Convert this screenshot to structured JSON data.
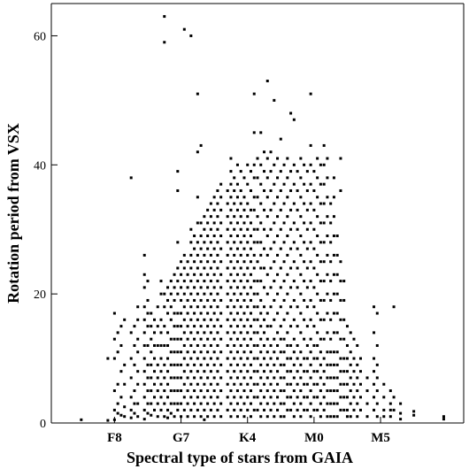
{
  "chart_data": {
    "type": "scatter",
    "title": "",
    "xlabel": "Spectral type of stars from GAIA",
    "ylabel": "Rotation period from VSX",
    "x_tick_labels": [
      "F8",
      "G7",
      "K4",
      "M0",
      "M5"
    ],
    "x_tick_positions": [
      1,
      2,
      3,
      4,
      5
    ],
    "xlim": [
      0.05,
      6.25
    ],
    "y_ticks": [
      0,
      20,
      40,
      60
    ],
    "ylim": [
      0,
      65
    ],
    "grid": false,
    "legend": "none",
    "marker_color": "#000000",
    "columns": [
      {
        "x": 0.5,
        "y": [
          0.5
        ]
      },
      {
        "x": 0.9,
        "y": [
          10,
          0.4
        ]
      },
      {
        "x": 1.0,
        "y": [
          17,
          13,
          10,
          5,
          2,
          0.5
        ]
      },
      {
        "x": 1.05,
        "y": [
          14,
          11,
          6,
          3,
          1.5
        ]
      },
      {
        "x": 1.1,
        "y": [
          15,
          12,
          8,
          4,
          1.2
        ]
      },
      {
        "x": 1.15,
        "y": [
          16,
          9,
          6,
          2.5,
          1
        ]
      },
      {
        "x": 1.25,
        "y": [
          38,
          14,
          10,
          7,
          4,
          2,
          0.8
        ]
      },
      {
        "x": 1.3,
        "y": [
          15,
          12,
          9,
          5,
          3,
          1.5
        ]
      },
      {
        "x": 1.35,
        "y": [
          18,
          16,
          13,
          11,
          8,
          6,
          3,
          1
        ]
      },
      {
        "x": 1.45,
        "y": [
          26,
          23,
          21,
          18,
          16,
          14,
          12,
          10,
          8,
          6,
          4,
          2,
          0.6
        ]
      },
      {
        "x": 1.5,
        "y": [
          22,
          19,
          17,
          15,
          12,
          9,
          7,
          5,
          3,
          1.5
        ]
      },
      {
        "x": 1.55,
        "y": [
          17,
          15,
          13,
          11,
          9,
          7,
          5,
          3,
          1.2
        ]
      },
      {
        "x": 1.6,
        "y": [
          16,
          14,
          12,
          10,
          8,
          6,
          4,
          2
        ]
      },
      {
        "x": 1.65,
        "y": [
          18,
          15,
          12,
          9,
          7,
          5,
          3,
          1
        ]
      },
      {
        "x": 1.7,
        "y": [
          22,
          20,
          16,
          14,
          12,
          10,
          8,
          6,
          4,
          2
        ]
      },
      {
        "x": 1.75,
        "y": [
          63,
          59,
          20,
          18,
          15,
          12,
          9,
          7,
          5,
          3,
          1
        ]
      },
      {
        "x": 1.8,
        "y": [
          21,
          19,
          17,
          14,
          12,
          10,
          8,
          6,
          4,
          2,
          0.8
        ]
      },
      {
        "x": 1.85,
        "y": [
          22,
          20,
          18,
          16,
          13,
          11,
          9,
          7,
          5,
          3,
          1.5
        ]
      },
      {
        "x": 1.9,
        "y": [
          23,
          21,
          19,
          17,
          15,
          13,
          11,
          9,
          7,
          5,
          3,
          1
        ]
      },
      {
        "x": 1.95,
        "y": [
          39,
          36,
          28,
          24,
          22,
          20,
          17,
          15,
          13,
          11,
          9,
          7,
          5,
          3,
          2
        ]
      },
      {
        "x": 2.0,
        "y": [
          25,
          23,
          21,
          19,
          17,
          15,
          13,
          11,
          9,
          7,
          5,
          3,
          1
        ]
      },
      {
        "x": 2.05,
        "y": [
          61,
          26,
          24,
          22,
          20,
          18,
          16,
          14,
          12,
          10,
          8,
          6,
          4,
          2
        ]
      },
      {
        "x": 2.1,
        "y": [
          25,
          23,
          21,
          19,
          17,
          15,
          13,
          11,
          9,
          7,
          5,
          3,
          1
        ]
      },
      {
        "x": 2.15,
        "y": [
          60,
          30,
          28,
          26,
          24,
          22,
          20,
          18,
          16,
          14,
          12,
          10,
          8,
          6,
          4,
          2
        ]
      },
      {
        "x": 2.2,
        "y": [
          29,
          27,
          25,
          23,
          21,
          19,
          17,
          15,
          13,
          11,
          9,
          7,
          5,
          3,
          1
        ]
      },
      {
        "x": 2.25,
        "y": [
          51,
          42,
          35,
          31,
          28,
          26,
          24,
          22,
          20,
          18,
          16,
          14,
          12,
          10,
          8,
          6,
          4,
          2
        ]
      },
      {
        "x": 2.3,
        "y": [
          43,
          31,
          29,
          27,
          25,
          23,
          21,
          19,
          17,
          15,
          13,
          11,
          9,
          7,
          5,
          3,
          1
        ]
      },
      {
        "x": 2.35,
        "y": [
          32,
          30,
          28,
          26,
          24,
          22,
          20,
          18,
          16,
          14,
          12,
          10,
          8,
          6,
          4,
          2,
          0.5
        ]
      },
      {
        "x": 2.4,
        "y": [
          33,
          31,
          29,
          27,
          25,
          23,
          21,
          19,
          17,
          15,
          13,
          11,
          9,
          7,
          5,
          3,
          1
        ]
      },
      {
        "x": 2.45,
        "y": [
          34,
          32,
          30,
          28,
          26,
          24,
          22,
          20,
          18,
          16,
          14,
          12,
          10,
          8,
          6,
          4,
          2
        ]
      },
      {
        "x": 2.5,
        "y": [
          35,
          33,
          31,
          29,
          27,
          25,
          23,
          21,
          19,
          17,
          15,
          13,
          11,
          9,
          7,
          5,
          3,
          1
        ]
      },
      {
        "x": 2.55,
        "y": [
          36,
          34,
          32,
          30,
          28,
          26,
          24,
          22,
          20,
          18,
          16,
          14,
          12,
          10,
          8,
          6,
          4,
          2
        ]
      },
      {
        "x": 2.6,
        "y": [
          37,
          35,
          33,
          31,
          29,
          27,
          25,
          23,
          21,
          19,
          17,
          15,
          13,
          11,
          9,
          7,
          5,
          3,
          1
        ]
      },
      {
        "x": 2.7,
        "y": [
          36,
          34,
          32,
          30,
          28,
          26,
          24,
          22,
          20,
          18,
          16,
          14,
          12,
          10,
          8,
          6,
          4,
          2
        ]
      },
      {
        "x": 2.75,
        "y": [
          41,
          39,
          37,
          35,
          33,
          31,
          29,
          27,
          25,
          23,
          21,
          19,
          17,
          15,
          13,
          11,
          9,
          7,
          5,
          3,
          1
        ]
      },
      {
        "x": 2.8,
        "y": [
          38,
          36,
          34,
          32,
          30,
          28,
          26,
          24,
          22,
          20,
          18,
          16,
          14,
          12,
          10,
          8,
          6,
          4,
          2
        ]
      },
      {
        "x": 2.85,
        "y": [
          40,
          37,
          35,
          33,
          31,
          29,
          27,
          25,
          23,
          21,
          19,
          17,
          15,
          13,
          11,
          9,
          7,
          5,
          3,
          1
        ]
      },
      {
        "x": 2.9,
        "y": [
          39,
          36,
          34,
          32,
          30,
          28,
          26,
          24,
          22,
          20,
          18,
          16,
          14,
          12,
          10,
          8,
          6,
          4,
          2
        ]
      },
      {
        "x": 2.95,
        "y": [
          38,
          35,
          33,
          31,
          29,
          27,
          25,
          23,
          21,
          19,
          17,
          15,
          13,
          11,
          9,
          7,
          5,
          3,
          1
        ]
      },
      {
        "x": 3.0,
        "y": [
          40,
          37,
          34,
          32,
          30,
          28,
          26,
          24,
          22,
          20,
          18,
          16,
          14,
          12,
          10,
          8,
          6,
          4,
          2
        ]
      },
      {
        "x": 3.05,
        "y": [
          39,
          36,
          33,
          31,
          29,
          27,
          25,
          23,
          21,
          19,
          17,
          15,
          13,
          11,
          9,
          7,
          5,
          3,
          1
        ]
      },
      {
        "x": 3.1,
        "y": [
          51,
          45,
          40,
          38,
          35,
          33,
          30,
          28,
          26,
          24,
          22,
          20,
          18,
          16,
          14,
          12,
          10,
          8,
          6,
          4,
          2
        ]
      },
      {
        "x": 3.15,
        "y": [
          41,
          38,
          35,
          32,
          30,
          28,
          25,
          22,
          20,
          18,
          16,
          14,
          12,
          10,
          8,
          6,
          4,
          2
        ]
      },
      {
        "x": 3.2,
        "y": [
          45,
          40,
          37,
          34,
          31,
          28,
          26,
          24,
          22,
          19,
          17,
          15,
          13,
          11,
          9,
          7,
          5,
          3,
          1
        ]
      },
      {
        "x": 3.25,
        "y": [
          42,
          39,
          36,
          33,
          30,
          27,
          24,
          21,
          18,
          16,
          14,
          12,
          10,
          8,
          6,
          4,
          2
        ]
      },
      {
        "x": 3.3,
        "y": [
          53,
          41,
          38,
          35,
          32,
          29,
          26,
          23,
          20,
          17,
          15,
          13,
          11,
          9,
          7,
          5,
          3,
          1
        ]
      },
      {
        "x": 3.35,
        "y": [
          42,
          39,
          36,
          33,
          30,
          27,
          24,
          21,
          18,
          15,
          12,
          10,
          8,
          6,
          4,
          2
        ]
      },
      {
        "x": 3.4,
        "y": [
          50,
          40,
          37,
          34,
          31,
          28,
          25,
          22,
          19,
          16,
          13,
          11,
          9,
          7,
          5,
          3,
          1
        ]
      },
      {
        "x": 3.45,
        "y": [
          41,
          38,
          35,
          32,
          29,
          26,
          23,
          20,
          17,
          14,
          12,
          10,
          8,
          6,
          4,
          2
        ]
      },
      {
        "x": 3.5,
        "y": [
          44,
          39,
          36,
          33,
          30,
          27,
          24,
          21,
          18,
          15,
          13,
          11,
          9,
          7,
          5,
          3,
          1
        ]
      },
      {
        "x": 3.55,
        "y": [
          40,
          37,
          34,
          31,
          28,
          25,
          22,
          19,
          16,
          13,
          11,
          9,
          7,
          5,
          3,
          1
        ]
      },
      {
        "x": 3.6,
        "y": [
          41,
          38,
          35,
          32,
          29,
          26,
          23,
          20,
          17,
          14,
          12,
          10,
          8,
          6,
          4,
          2
        ]
      },
      {
        "x": 3.65,
        "y": [
          48,
          39,
          36,
          33,
          30,
          27,
          24,
          21,
          18,
          15,
          12,
          10,
          8,
          6,
          4,
          2
        ]
      },
      {
        "x": 3.7,
        "y": [
          47,
          40,
          37,
          34,
          31,
          28,
          25,
          22,
          19,
          16,
          13,
          11,
          9,
          7,
          5,
          3,
          1
        ]
      },
      {
        "x": 3.75,
        "y": [
          39,
          36,
          33,
          30,
          27,
          24,
          21,
          18,
          15,
          12,
          10,
          8,
          6,
          4,
          2
        ]
      },
      {
        "x": 3.8,
        "y": [
          41,
          38,
          35,
          32,
          29,
          26,
          23,
          20,
          17,
          14,
          11,
          9,
          7,
          5,
          3,
          1
        ]
      },
      {
        "x": 3.85,
        "y": [
          40,
          37,
          34,
          31,
          28,
          25,
          22,
          19,
          16,
          13,
          10,
          8,
          6,
          4,
          2
        ]
      },
      {
        "x": 3.9,
        "y": [
          39,
          36,
          33,
          30,
          27,
          24,
          21,
          18,
          15,
          12,
          10,
          8,
          6,
          4,
          2
        ]
      },
      {
        "x": 3.95,
        "y": [
          51,
          43,
          40,
          37,
          34,
          31,
          28,
          25,
          22,
          19,
          16,
          13,
          11,
          9,
          7,
          5,
          3,
          1
        ]
      },
      {
        "x": 4.0,
        "y": [
          39,
          36,
          33,
          30,
          27,
          24,
          21,
          18,
          15,
          12,
          10,
          8,
          6,
          4,
          2
        ]
      },
      {
        "x": 4.05,
        "y": [
          41,
          38,
          35,
          32,
          29,
          26,
          23,
          20,
          17,
          14,
          12,
          10,
          8,
          6,
          4,
          2
        ]
      },
      {
        "x": 4.1,
        "y": [
          40,
          37,
          34,
          31,
          28,
          25,
          22,
          19,
          16,
          13,
          11,
          9,
          7,
          5,
          3,
          1
        ]
      },
      {
        "x": 4.15,
        "y": [
          43,
          40,
          37,
          34,
          31,
          28,
          25,
          22,
          19,
          16,
          13,
          10,
          8,
          6,
          4,
          2
        ]
      },
      {
        "x": 4.2,
        "y": [
          41,
          38,
          35,
          32,
          29,
          26,
          23,
          20,
          17,
          14,
          11,
          9,
          7,
          5,
          3,
          1
        ]
      },
      {
        "x": 4.25,
        "y": [
          34,
          31,
          28,
          25,
          22,
          19,
          16,
          13,
          11,
          9,
          7,
          5,
          3,
          1
        ]
      },
      {
        "x": 4.3,
        "y": [
          38,
          35,
          32,
          29,
          26,
          23,
          20,
          17,
          14,
          11,
          9,
          7,
          5,
          3,
          1
        ]
      },
      {
        "x": 4.35,
        "y": [
          29,
          26,
          23,
          20,
          17,
          14,
          11,
          9,
          7,
          5,
          3,
          1
        ]
      },
      {
        "x": 4.4,
        "y": [
          41,
          36,
          25,
          22,
          19,
          16,
          13,
          10,
          8,
          6,
          4,
          2
        ]
      },
      {
        "x": 4.45,
        "y": [
          22,
          19,
          16,
          13,
          10,
          8,
          6,
          4,
          2
        ]
      },
      {
        "x": 4.5,
        "y": [
          15,
          12,
          10,
          8,
          6,
          4,
          2,
          1
        ]
      },
      {
        "x": 4.55,
        "y": [
          14,
          11,
          9,
          7,
          5,
          3,
          1
        ]
      },
      {
        "x": 4.6,
        "y": [
          13,
          10,
          8,
          6,
          4,
          2
        ]
      },
      {
        "x": 4.65,
        "y": [
          12,
          9,
          7,
          5,
          3,
          1
        ]
      },
      {
        "x": 4.7,
        "y": [
          10,
          8,
          6,
          4,
          2
        ]
      },
      {
        "x": 4.8,
        "y": [
          7,
          5,
          3,
          1
        ]
      },
      {
        "x": 4.9,
        "y": [
          18,
          14,
          10,
          8,
          6,
          4,
          2
        ]
      },
      {
        "x": 4.95,
        "y": [
          17,
          12,
          9,
          7,
          5,
          3,
          1
        ]
      },
      {
        "x": 5.05,
        "y": [
          6,
          4,
          2,
          1
        ]
      },
      {
        "x": 5.15,
        "y": [
          5,
          3,
          2,
          1
        ]
      },
      {
        "x": 5.2,
        "y": [
          18,
          4,
          2
        ]
      },
      {
        "x": 5.3,
        "y": [
          3,
          1.5,
          0.6
        ]
      },
      {
        "x": 5.5,
        "y": [
          1.8,
          1.2
        ]
      },
      {
        "x": 5.95,
        "y": [
          1,
          0.6
        ]
      }
    ]
  }
}
